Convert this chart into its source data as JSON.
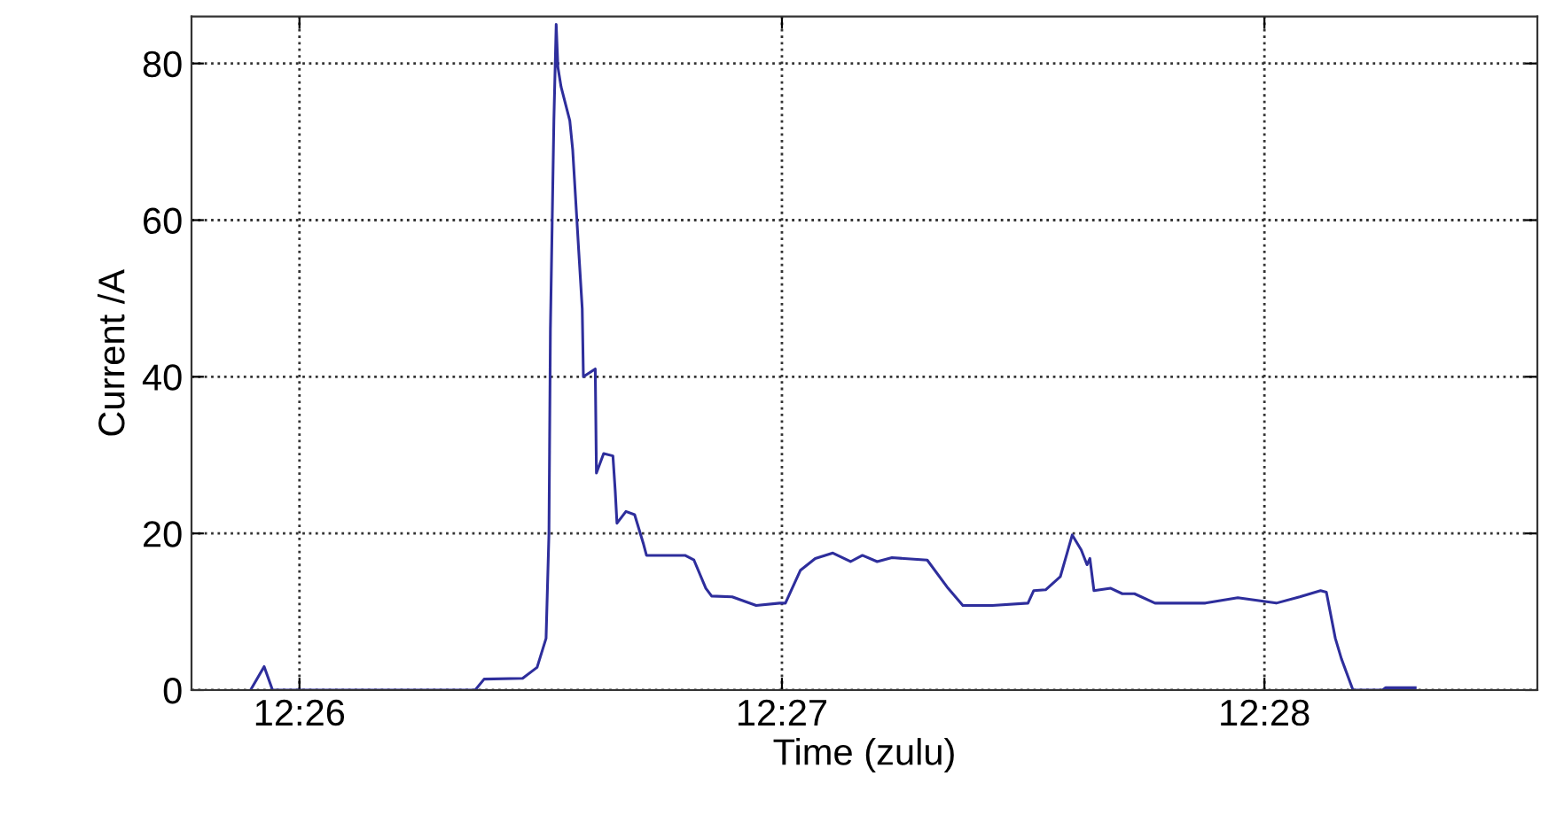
{
  "chart_data": {
    "type": "line",
    "xlabel": "Time (zulu)",
    "ylabel": "Current /A",
    "series": [
      {
        "color": "#2e2e9c",
        "x": [
          12.43164,
          12.43211,
          12.4324,
          12.4394,
          12.43971,
          12.44104,
          12.44154,
          12.44185,
          12.44195,
          12.442,
          12.44212,
          12.4422,
          12.44226,
          12.44237,
          12.44267,
          12.44277,
          12.44298,
          12.4431,
          12.44314,
          12.44355,
          12.44359,
          12.44384,
          12.44416,
          12.44424,
          12.4443,
          12.44461,
          12.44491,
          12.44522,
          12.44532,
          12.44624,
          12.44665,
          12.44696,
          12.44737,
          12.44757,
          12.44828,
          12.44911,
          12.44992,
          12.45012,
          12.45064,
          12.45115,
          12.45176,
          12.45237,
          12.45278,
          12.45329,
          12.4538,
          12.45502,
          12.45574,
          12.45625,
          12.45727,
          12.4585,
          12.4587,
          12.45911,
          12.45962,
          12.45983,
          12.46003,
          12.46034,
          12.46054,
          12.46064,
          12.46078,
          12.46136,
          12.46176,
          12.46218,
          12.46289,
          12.46463,
          12.46575,
          12.46708,
          12.46789,
          12.46861,
          12.46881,
          12.46912,
          12.46933,
          12.46973,
          12.47075,
          12.47086,
          12.47188
        ],
        "values": [
          0,
          3,
          0,
          0,
          1.4,
          1.5,
          2.9,
          6.6,
          20,
          46,
          72.7,
          85,
          79.5,
          77,
          72.7,
          69,
          56,
          48.7,
          40,
          41,
          27.7,
          30.2,
          29.9,
          25.4,
          21.3,
          22.8,
          22.4,
          18.6,
          17.2,
          17.2,
          17.2,
          16.6,
          13,
          12,
          11.9,
          10.8,
          11.1,
          11.1,
          15.3,
          16.8,
          17.5,
          16.4,
          17.2,
          16.4,
          16.9,
          16.6,
          13,
          10.8,
          10.8,
          11.1,
          12.7,
          12.8,
          14.5,
          17.2,
          19.8,
          17.9,
          16,
          16.8,
          12.7,
          13,
          12.3,
          12.3,
          11.1,
          11.1,
          11.8,
          11.1,
          11.9,
          12.7,
          12.5,
          6.6,
          4,
          0,
          0,
          0.3,
          0.3
        ]
      }
    ],
    "xlim": [
      12.4296,
      12.4761
    ],
    "xticks": [
      {
        "value": 12.43333,
        "label": "12:26"
      },
      {
        "value": 12.45,
        "label": "12:27"
      },
      {
        "value": 12.46667,
        "label": "12:28"
      }
    ],
    "ylim": [
      0,
      86
    ],
    "yticks": [
      0,
      20,
      40,
      60,
      80
    ],
    "grid": true,
    "legend": false,
    "marker": "none",
    "line_style": "solid"
  }
}
